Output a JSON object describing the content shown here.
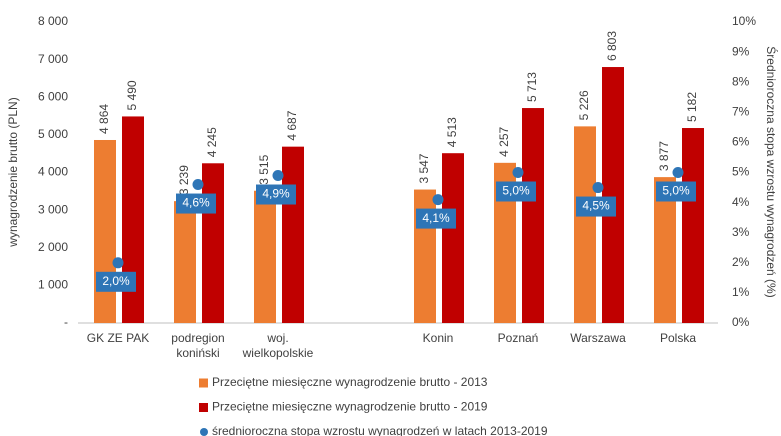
{
  "chart_data": {
    "type": "bar",
    "y_label": "wynagrodzenie brutto (PLN)",
    "y2_label": "Średnioroczna stopa wzrostu wynagrodzeń (%)",
    "categories": [
      "GK ZE PAK",
      "podregion\nkoniński",
      "woj.\nwielkopolskie",
      null,
      "Konin",
      "Poznań",
      "Warszawa",
      "Polska"
    ],
    "series": [
      {
        "name": "Przeciętne miesięczne wynagrodzenie brutto - 2013",
        "color": "#ed7d31",
        "values": [
          4864,
          3239,
          3515,
          null,
          3547,
          4257,
          5226,
          3877
        ],
        "value_labels": [
          "4 864",
          "3 239",
          "3 515",
          null,
          "3 547",
          "4 257",
          "5 226",
          "3 877"
        ]
      },
      {
        "name": "Przeciętne miesięczne wynagrodzenie brutto - 2019",
        "color": "#c00000",
        "values": [
          5490,
          4245,
          4687,
          null,
          4513,
          5713,
          6803,
          5182
        ],
        "value_labels": [
          "5 490",
          "4 245",
          "4 687",
          null,
          "4 513",
          "5 713",
          "6 803",
          "5 182"
        ]
      },
      {
        "name": "średnioroczna stopa wzrostu wynagrodzeń w latach 2013-2019",
        "color": "#2e75b6",
        "type": "scatter",
        "axis": "y2",
        "values": [
          2.0,
          4.6,
          4.9,
          null,
          4.1,
          5.0,
          4.5,
          5.0
        ],
        "value_labels": [
          "2,0%",
          "4,6%",
          "4,9%",
          null,
          "4,1%",
          "5,0%",
          "4,5%",
          "5,0%"
        ]
      }
    ],
    "ylim": [
      0,
      8000
    ],
    "yticks": [
      {
        "value": 0,
        "label": "-"
      },
      {
        "value": 1000,
        "label": "1 000"
      },
      {
        "value": 2000,
        "label": "2 000"
      },
      {
        "value": 3000,
        "label": "3 000"
      },
      {
        "value": 4000,
        "label": "4 000"
      },
      {
        "value": 5000,
        "label": "5 000"
      },
      {
        "value": 6000,
        "label": "6 000"
      },
      {
        "value": 7000,
        "label": "7 000"
      },
      {
        "value": 8000,
        "label": "8 000"
      }
    ],
    "y2lim": [
      0,
      10
    ],
    "y2ticks": [
      {
        "value": 0,
        "label": "0%"
      },
      {
        "value": 1,
        "label": "1%"
      },
      {
        "value": 2,
        "label": "2%"
      },
      {
        "value": 3,
        "label": "3%"
      },
      {
        "value": 4,
        "label": "4%"
      },
      {
        "value": 5,
        "label": "5%"
      },
      {
        "value": 6,
        "label": "6%"
      },
      {
        "value": 7,
        "label": "7%"
      },
      {
        "value": 8,
        "label": "8%"
      },
      {
        "value": 9,
        "label": "9%"
      },
      {
        "value": 10,
        "label": "10%"
      }
    ],
    "grid": false
  }
}
